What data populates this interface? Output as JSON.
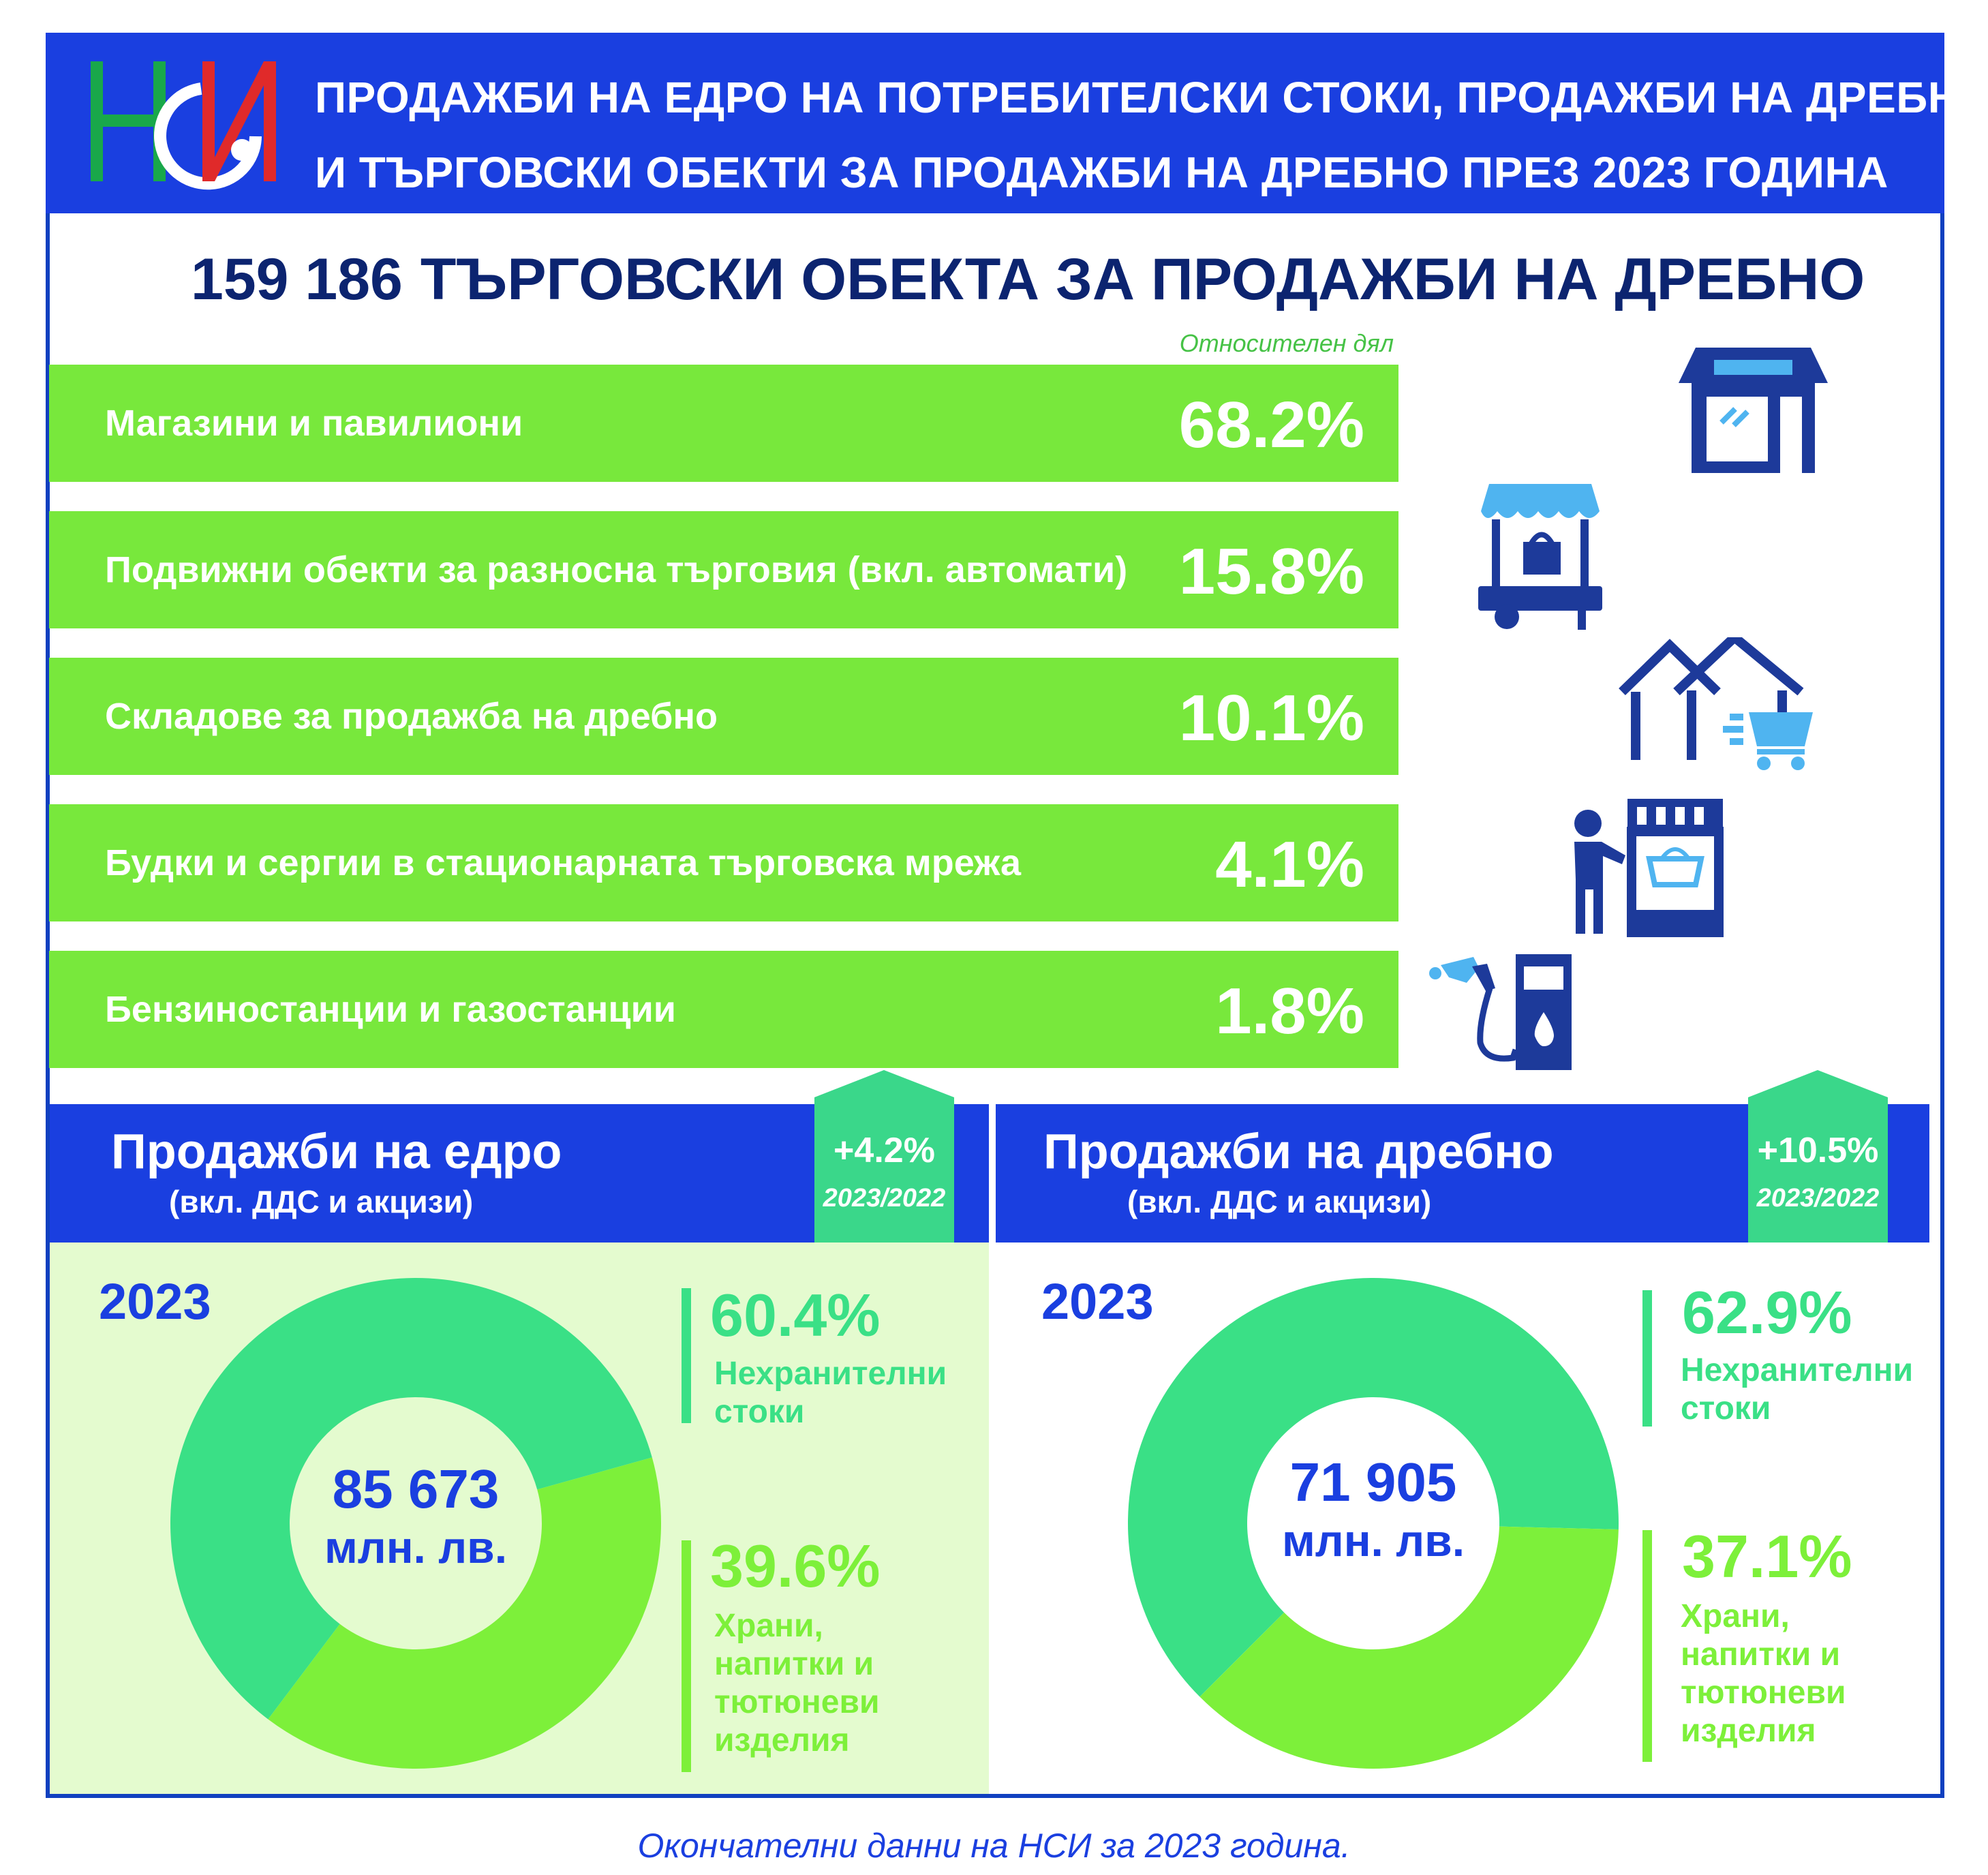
{
  "header": {
    "logo_text": "НСИ",
    "title_line1": "ПРОДАЖБИ НА ЕДРО НА ПОТРЕБИТЕЛСКИ СТОКИ, ПРОДАЖБИ НА ДРЕБНО",
    "title_line2": "И ТЪРГОВСКИ ОБЕКТИ ЗА ПРОДАЖБИ НА ДРЕБНО ПРЕЗ 2023 ГОДИНА"
  },
  "total": {
    "number": "159 186",
    "label": "ТЪРГОВСКИ ОБЕКТА ЗА ПРОДАЖБИ НА ДРЕБНО"
  },
  "share_caption": "Относителен дял",
  "outlets": [
    {
      "label": "Магазини и павилиони",
      "value": "68.2%",
      "icon": "shop-icon"
    },
    {
      "label": "Подвижни обекти за разносна търговия (вкл. автомати)",
      "value": "15.8%",
      "icon": "market-cart-icon"
    },
    {
      "label": "Складове за продажба на дребно",
      "value": "10.1%",
      "icon": "warehouse-cart-icon"
    },
    {
      "label": "Будки и сергии в стационарната търговска мрежа",
      "value": "4.1%",
      "icon": "kiosk-person-icon"
    },
    {
      "label": "Бензиностанции и газостанции",
      "value": "1.8%",
      "icon": "fuel-station-icon"
    }
  ],
  "wholesale": {
    "title": "Продажби на едро",
    "subtitle": "(вкл. ДДС и акцизи)",
    "growth": "+4.2%",
    "period": "2023/2022",
    "year": "2023",
    "total_number": "85 673",
    "total_unit": "млн. лв.",
    "nonfood_pct": "60.4%",
    "nonfood_line1": "Нехранителни",
    "nonfood_line2": "стоки",
    "food_pct": "39.6%",
    "food_line1": "Храни,",
    "food_line2": "напитки и",
    "food_line3": "тютюневи",
    "food_line4": "изделия"
  },
  "retail": {
    "title": "Продажби на дребно",
    "subtitle": "(вкл. ДДС и акцизи)",
    "growth": "+10.5%",
    "period": "2023/2022",
    "year": "2023",
    "total_number": "71 905",
    "total_unit": "млн. лв.",
    "nonfood_pct": "62.9%",
    "nonfood_line1": "Нехранителни",
    "nonfood_line2": "стоки",
    "food_pct": "37.1%",
    "food_line1": "Храни,",
    "food_line2": "напитки и",
    "food_line3": "тютюневи",
    "food_line4": "изделия"
  },
  "footer": "Окончателни данни на НСИ за 2023 година.",
  "colors": {
    "blue": "#1a3fe0",
    "navy": "#0c2470",
    "bar_green": "#78e83c",
    "nonfood_green": "#3ae086",
    "food_green": "#7df03a",
    "badge_green": "#3ad78a"
  },
  "chart_data": [
    {
      "type": "bar",
      "categories": [
        "Магазини и павилиони",
        "Подвижни обекти за разносна търговия (вкл. автомати)",
        "Складове за продажба на дребно",
        "Будки и сергии в стационарната търговска мрежа",
        "Бензиностанции и газостанции"
      ],
      "values": [
        68.2,
        15.8,
        10.1,
        4.1,
        1.8
      ],
      "title": "159 186 ТЪРГОВСКИ ОБЕКТА ЗА ПРОДАЖБИ НА ДРЕБНО",
      "ylabel": "Относителен дял"
    },
    {
      "type": "pie",
      "title": "Продажби на едро",
      "categories": [
        "Нехранителни стоки",
        "Храни, напитки и тютюневи изделия"
      ],
      "values": [
        60.4,
        39.6
      ],
      "total": 85673
    },
    {
      "type": "pie",
      "title": "Продажби на дребно",
      "categories": [
        "Нехранителни стоки",
        "Храни, напитки и тютюневи изделия"
      ],
      "values": [
        62.9,
        37.1
      ],
      "total": 71905
    }
  ]
}
